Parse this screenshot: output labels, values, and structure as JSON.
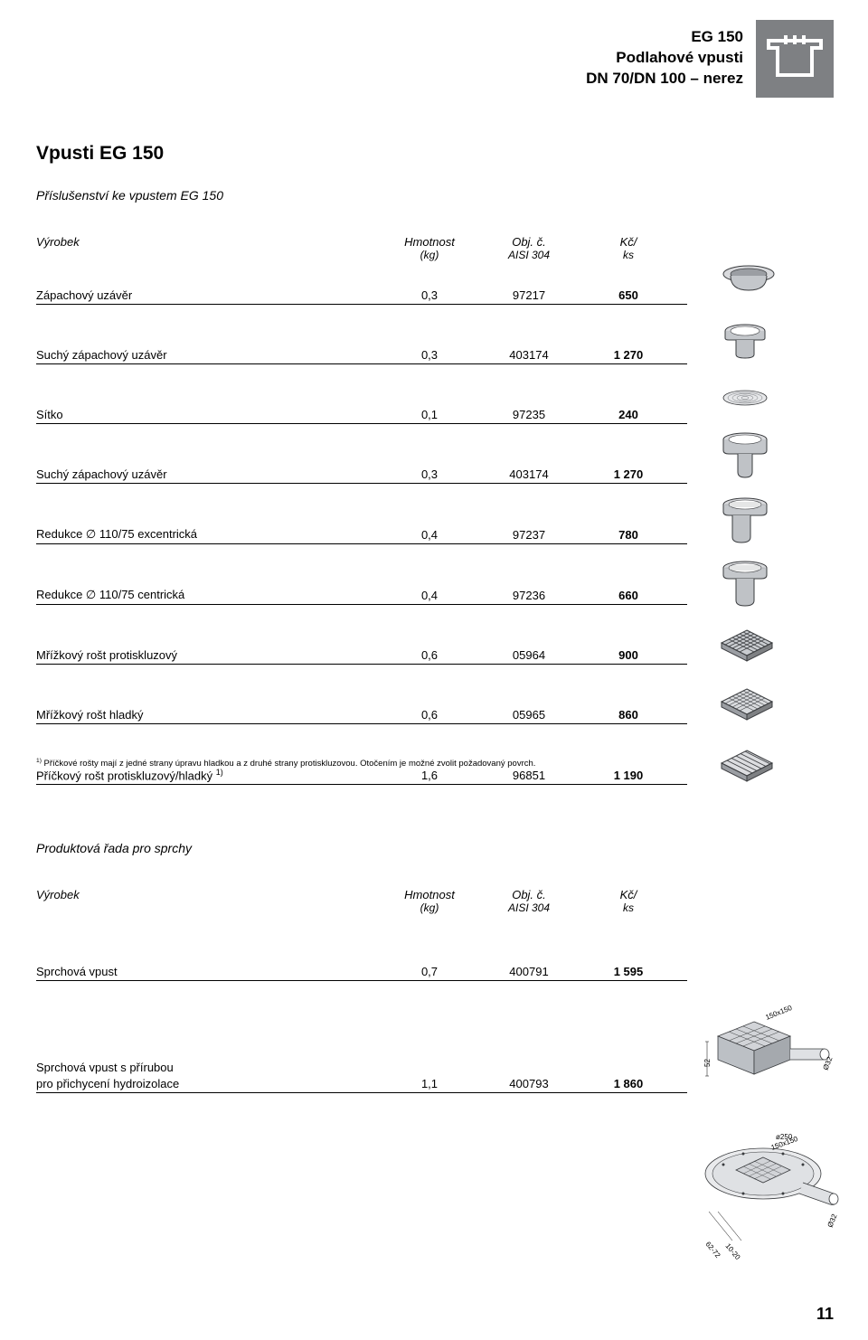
{
  "header": {
    "line1": "EG 150",
    "line2": "Podlahové vpusti",
    "line3": "DN 70/DN 100 – nerez"
  },
  "section1": {
    "title": "Vpusti EG 150",
    "subtitle": "Příslušenství ke vpustem EG 150",
    "columns": {
      "product": "Výrobek",
      "weight_l1": "Hmotnost",
      "weight_l2": "(kg)",
      "obj_l1": "Obj. č.",
      "obj_l2": "AISI 304",
      "price_l1": "Kč/",
      "price_l2": "ks"
    },
    "rows": [
      {
        "name": "Zápachový uzávěr",
        "weight": "0,3",
        "obj": "97217",
        "price": "650"
      },
      {
        "name": "Suchý zápachový uzávěr",
        "weight": "0,3",
        "obj": "403174",
        "price": "1 270"
      },
      {
        "name": "Sítko",
        "weight": "0,1",
        "obj": "97235",
        "price": "240"
      },
      {
        "name": "Suchý zápachový uzávěr",
        "weight": "0,3",
        "obj": "403174",
        "price": "1 270"
      },
      {
        "name": "Redukce ∅ 110/75 excentrická",
        "weight": "0,4",
        "obj": "97237",
        "price": "780"
      },
      {
        "name": "Redukce ∅ 110/75 centrická",
        "weight": "0,4",
        "obj": "97236",
        "price": "660"
      },
      {
        "name": "Mřížkový rošt protiskluzový",
        "weight": "0,6",
        "obj": "05964",
        "price": "900"
      },
      {
        "name": "Mřížkový rošt hladký",
        "weight": "0,6",
        "obj": "05965",
        "price": "860"
      },
      {
        "name_html": "Příčkový rošt protiskluzový/hladký <sup>1)</sup>",
        "weight": "1,6",
        "obj": "96851",
        "price": "1 190"
      }
    ],
    "footnote_html": "<sup>1)</sup> Příčkové rošty mají z jedné strany úpravu hladkou a z druhé strany protiskluzovou. Otočením je možné zvolit požadovaný povrch."
  },
  "section2": {
    "title": "Produktová řada pro sprchy",
    "columns": {
      "product": "Výrobek",
      "weight_l1": "Hmotnost",
      "weight_l2": "(kg)",
      "obj_l1": "Obj. č.",
      "obj_l2": "AISI 304",
      "price_l1": "Kč/",
      "price_l2": "ks"
    },
    "rows": [
      {
        "name": "Sprchová vpust",
        "weight": "0,7",
        "obj": "400791",
        "price": "1 595"
      },
      {
        "name_l1": "Sprchová vpust s přírubou",
        "name_l2": "pro přichycení hydroizolace",
        "weight": "1,1",
        "obj": "400793",
        "price": "1 860"
      }
    ]
  },
  "diagrams": {
    "d1": {
      "dim1": "150x150",
      "dim2": "52",
      "dim3": "Ø32"
    },
    "d2": {
      "dim1": "ø250",
      "dim2": "150x150",
      "dim3": "62-72",
      "dim4": "10-20",
      "dim5": "Ø32"
    }
  },
  "page_number": "11",
  "colors": {
    "gray": "#7e8083",
    "light_gray": "#b8bbbf",
    "stroke": "#3a3c3f",
    "white": "#ffffff"
  }
}
